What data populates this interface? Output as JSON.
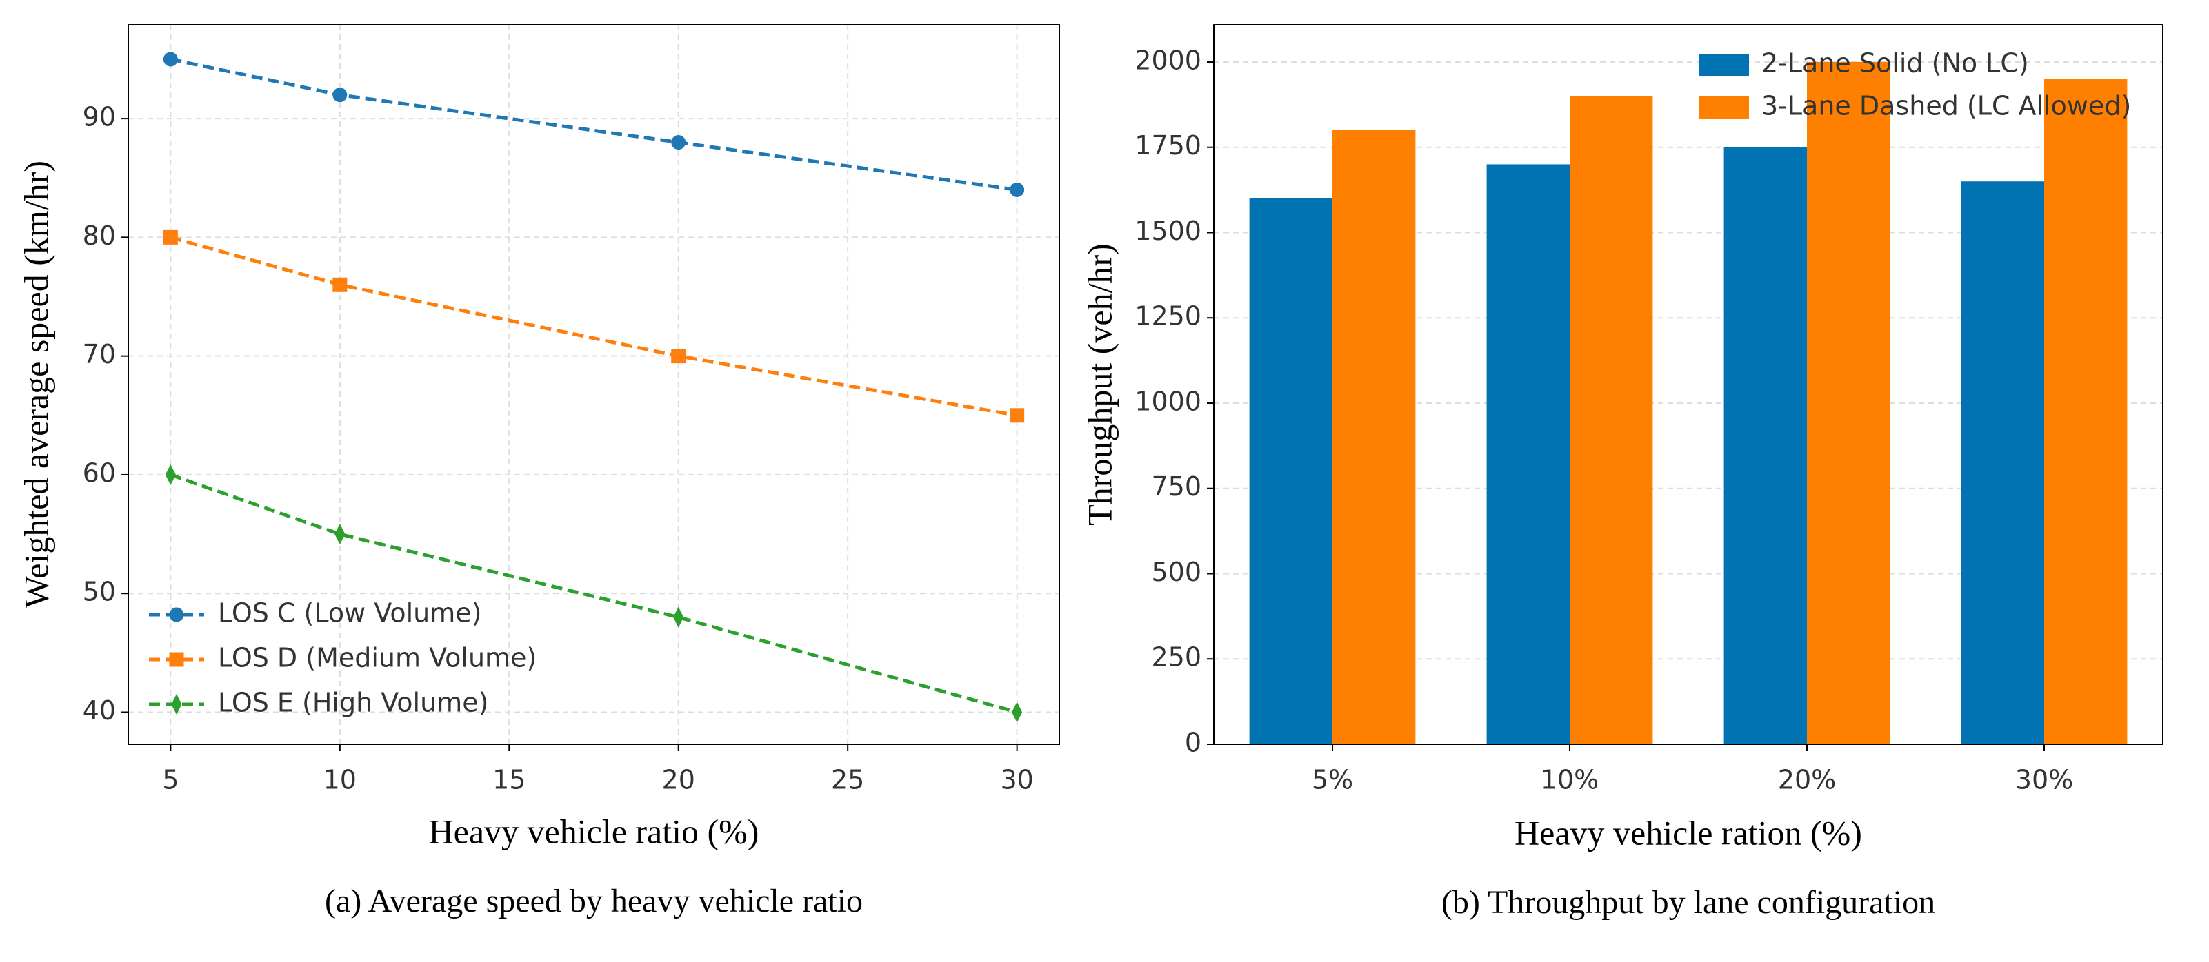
{
  "chart_data": [
    {
      "type": "line",
      "caption": "(a) Average speed by heavy vehicle ratio",
      "xlabel": "Heavy vehicle ratio (%)",
      "ylabel": "Weighted average speed (km/hr)",
      "x": [
        5,
        10,
        20,
        30
      ],
      "series": [
        {
          "name": "LOS C (Low Volume)",
          "color": "#1f77b4",
          "marker": "circle",
          "values": [
            95,
            92,
            88,
            84
          ]
        },
        {
          "name": "LOS D (Medium Volume)",
          "color": "#ff7f0e",
          "marker": "square",
          "values": [
            80,
            76,
            70,
            65
          ]
        },
        {
          "name": "LOS E (High Volume)",
          "color": "#2ca02c",
          "marker": "diamond",
          "values": [
            60,
            55,
            48,
            40
          ]
        }
      ],
      "xlim": [
        3.75,
        31.25
      ],
      "xticks": [
        5,
        10,
        15,
        20,
        25,
        30
      ],
      "ylim": [
        37.3,
        97.9
      ],
      "yticks": [
        40,
        50,
        60,
        70,
        80,
        90
      ],
      "grid": true,
      "legend": "lower left"
    },
    {
      "type": "bar",
      "caption": "(b) Throughput by lane configuration",
      "xlabel": "Heavy vehicle ration (%)",
      "ylabel": "Throughput (veh/hr)",
      "categories": [
        "5%",
        "10%",
        "20%",
        "30%"
      ],
      "series": [
        {
          "name": "2-Lane Solid (No LC)",
          "color": "#0173b2",
          "values": [
            1600,
            1700,
            1750,
            1650
          ]
        },
        {
          "name": "3-Lane Dashed (LC Allowed)",
          "color": "#ff8000",
          "values": [
            1800,
            1900,
            2000,
            1950
          ]
        }
      ],
      "ylim": [
        0,
        2109
      ],
      "yticks": [
        0,
        250,
        500,
        750,
        1000,
        1250,
        1500,
        1750,
        2000
      ],
      "grid": true,
      "legend": "upper right"
    }
  ]
}
